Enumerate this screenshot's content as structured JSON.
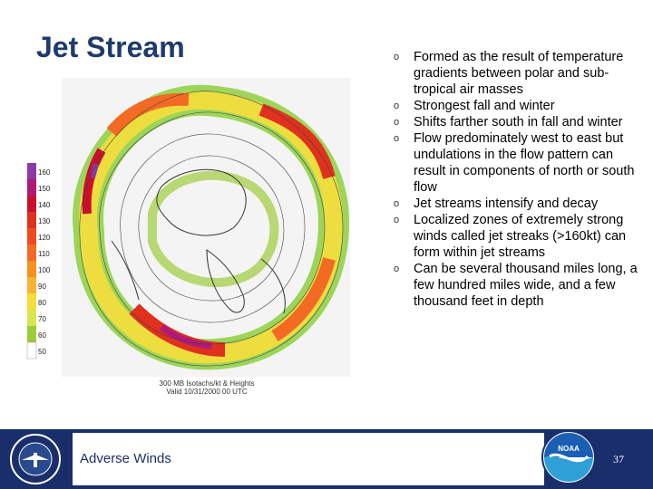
{
  "slide": {
    "title": "Jet Stream",
    "footer_label": "Adverse Winds",
    "page_number": "37"
  },
  "map": {
    "legend_labels": [
      "160",
      "150",
      "140",
      "130",
      "120",
      "110",
      "100",
      "90",
      "80",
      "70",
      "60",
      "50"
    ],
    "legend_colors": [
      "#8b3aa8",
      "#b0197a",
      "#c8102e",
      "#e0301e",
      "#f04a1e",
      "#f26a24",
      "#f7901e",
      "#f9b233",
      "#f5dd3b",
      "#d8e651",
      "#9ccc3a",
      "#ffffff"
    ],
    "caption_line1": "300 MB Isotachs/kt & Heights",
    "caption_line2": "Valid 10/31/2000 00 UTC"
  },
  "bullets": [
    "Formed as the result of temperature gradients between polar and sub-tropical air masses",
    "Strongest fall and winter",
    "Shifts farther south in fall and winter",
    "Flow predominately west to east but undulations in the flow pattern can result in components of north or south flow",
    "Jet streams intensify and decay",
    "Localized zones of extremely strong winds called jet streaks (>160kt) can form within jet streams",
    "Can be several thousand miles long, a few hundred miles wide, and a few thousand feet in depth"
  ],
  "bullet_marker": "o",
  "logos": {
    "faa": "faa-seal-icon",
    "noaa": "noaa-logo-icon",
    "noaa_text": "NOAA"
  }
}
